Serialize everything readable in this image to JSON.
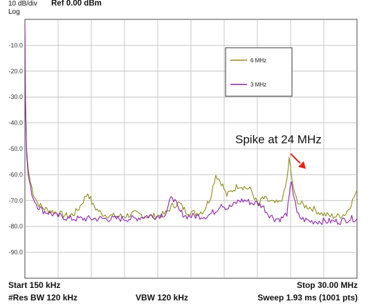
{
  "header": {
    "scale": "10 dB/div",
    "ref": "Ref 0.00 dBm",
    "mode": "Log"
  },
  "footer": {
    "start": "Start 150 kHz",
    "stop": "Stop 30.00 MHz",
    "res_bw": "#Res BW 120 kHz",
    "vbw": "VBW 120 kHz",
    "sweep": "Sweep  1.93 ms (1001 pts)"
  },
  "annotation": {
    "text": "Spike at 24 MHz",
    "arrow_color": "#e8201a"
  },
  "chart_data": {
    "type": "line",
    "title": "",
    "xlabel": "",
    "ylabel": "",
    "x_unit": "MHz",
    "y_unit": "dBm",
    "xlim": [
      0.15,
      30.0
    ],
    "ylim": [
      -100,
      0
    ],
    "y_ticks": [
      -10,
      -20,
      -30,
      -40,
      -50,
      -60,
      -70,
      -80,
      -90
    ],
    "y_tick_labels": [
      "-10.0",
      "-20.0",
      "-30.0",
      "-40.0",
      "-50.0",
      "-60.0",
      "-70.0",
      "-80.0",
      "-90.0"
    ],
    "x_divisions": 10,
    "grid": true,
    "legend_position": "top-right",
    "series": [
      {
        "name": "6 MHz",
        "color": "#8b8b1a",
        "x": [
          0.15,
          0.2,
          0.3,
          0.45,
          0.65,
          0.9,
          1.3,
          1.8,
          2.5,
          3.2,
          4.0,
          4.6,
          5.0,
          5.4,
          5.8,
          6.3,
          7.0,
          8.0,
          9.0,
          10.0,
          11.0,
          12.0,
          12.8,
          13.4,
          14.0,
          14.6,
          15.5,
          16.2,
          16.8,
          17.3,
          17.8,
          18.3,
          18.8,
          19.4,
          20.0,
          20.5,
          20.9,
          21.2,
          21.5,
          22.0,
          22.5,
          23.0,
          23.4,
          23.7,
          23.9,
          24.1,
          24.4,
          24.8,
          25.3,
          26.0,
          26.8,
          27.6,
          28.4,
          29.0,
          29.6,
          30.0
        ],
        "y": [
          -2,
          -30,
          -50,
          -58,
          -63,
          -67,
          -71,
          -73,
          -74,
          -75,
          -76,
          -75,
          -73,
          -70,
          -67,
          -72,
          -75,
          -76,
          -76,
          -75,
          -76,
          -76,
          -75,
          -72,
          -71,
          -74,
          -75,
          -74,
          -69,
          -60,
          -63,
          -68,
          -66,
          -64,
          -65,
          -66,
          -70,
          -72,
          -69,
          -70,
          -71,
          -71,
          -68,
          -62,
          -54,
          -60,
          -68,
          -71,
          -72,
          -73,
          -75,
          -76,
          -76,
          -75,
          -70,
          -66
        ]
      },
      {
        "name": "3 MHz",
        "color": "#8a1fa8",
        "x": [
          0.15,
          0.2,
          0.3,
          0.45,
          0.65,
          0.9,
          1.3,
          1.8,
          2.5,
          3.0,
          3.5,
          4.0,
          5.0,
          6.0,
          7.0,
          8.0,
          9.0,
          10.0,
          11.0,
          12.0,
          12.8,
          13.4,
          14.0,
          14.6,
          15.5,
          16.5,
          17.3,
          17.8,
          18.3,
          18.8,
          19.4,
          20.0,
          20.6,
          21.0,
          21.5,
          22.0,
          22.6,
          23.2,
          23.7,
          23.9,
          24.1,
          24.3,
          24.6,
          25.0,
          25.8,
          26.6,
          27.5,
          28.5,
          29.3,
          30.0
        ],
        "y": [
          -2,
          -32,
          -52,
          -60,
          -65,
          -69,
          -72,
          -74,
          -75,
          -76,
          -76,
          -77,
          -77,
          -77,
          -77,
          -77,
          -77,
          -77,
          -76,
          -76,
          -75,
          -68,
          -74,
          -76,
          -76,
          -76,
          -74,
          -71,
          -73,
          -72,
          -70,
          -70,
          -71,
          -71,
          -72,
          -75,
          -77,
          -77,
          -75,
          -69,
          -62,
          -68,
          -75,
          -77,
          -78,
          -78,
          -78,
          -78,
          -77,
          -77
        ]
      }
    ]
  }
}
